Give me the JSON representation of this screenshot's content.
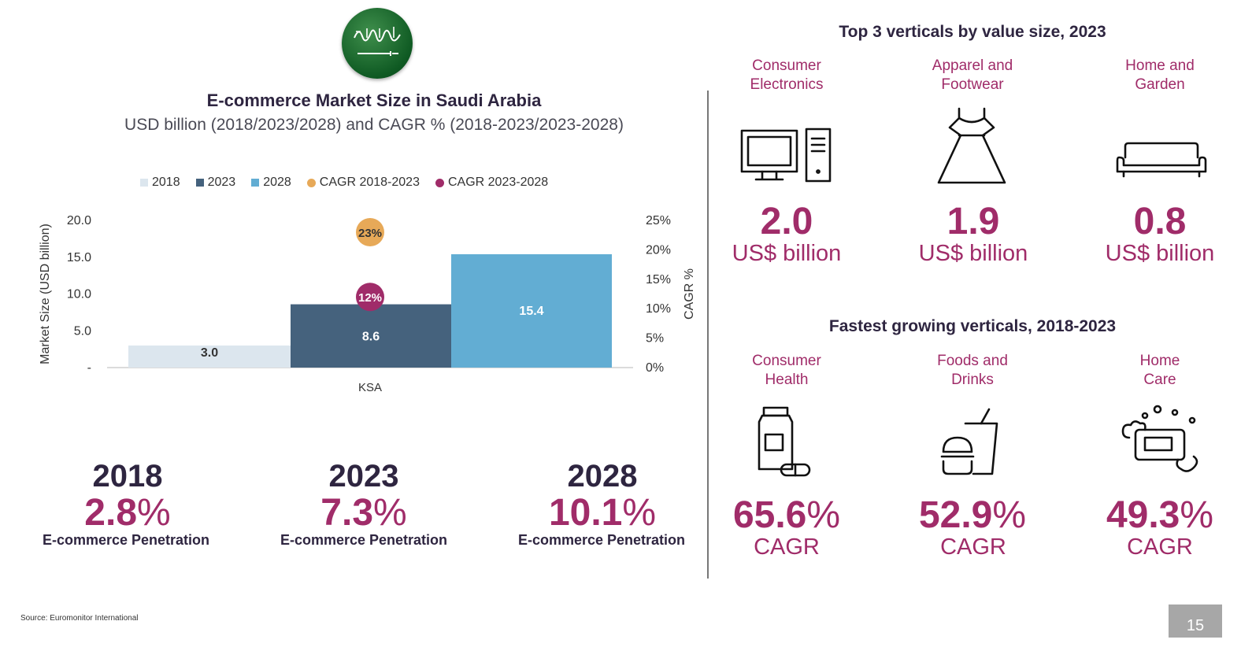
{
  "chart": {
    "title": "E-commerce Market Size in Saudi Arabia",
    "subtitle": "USD billion (2018/2023/2028) and CAGR % (2018-2023/2023-2028)",
    "legend": [
      {
        "label": "2018",
        "color": "#dce6ee",
        "shape": "square"
      },
      {
        "label": "2023",
        "color": "#45627d",
        "shape": "square"
      },
      {
        "label": "2028",
        "color": "#62add3",
        "shape": "square"
      },
      {
        "label": "CAGR 2018-2023",
        "color": "#e7a958",
        "shape": "circle"
      },
      {
        "label": "CAGR 2023-2028",
        "color": "#a02c69",
        "shape": "circle"
      }
    ]
  },
  "chart_data": {
    "type": "bar",
    "title": "E-commerce Market Size in Saudi Arabia",
    "subtitle": "USD billion (2018/2023/2028) and CAGR % (2018-2023/2023-2028)",
    "categories": [
      "KSA"
    ],
    "series": [
      {
        "name": "2018",
        "values": [
          3.0
        ],
        "color": "#dce6ee",
        "label": "3.0"
      },
      {
        "name": "2023",
        "values": [
          8.6
        ],
        "color": "#45627d",
        "label": "8.6"
      },
      {
        "name": "2028",
        "values": [
          15.4
        ],
        "color": "#62add3",
        "label": "15.4"
      }
    ],
    "cagr": [
      {
        "name": "CAGR 2018-2023",
        "value": 23,
        "label": "23%",
        "color": "#e7a958"
      },
      {
        "name": "CAGR 2023-2028",
        "value": 12,
        "label": "12%",
        "color": "#a02c69"
      }
    ],
    "ylabel": "Market Size (USD billion)",
    "y2label": "CAGR %",
    "ylim": [
      0,
      20
    ],
    "y2lim": [
      0,
      25
    ],
    "yticks": [
      "-",
      "5.0",
      "10.0",
      "15.0",
      "20.0"
    ],
    "y2ticks": [
      "0%",
      "5%",
      "10%",
      "15%",
      "20%",
      "25%"
    ],
    "xlabel": "KSA",
    "grid": false,
    "legend_position": "top"
  },
  "penetration": [
    {
      "year": "2018",
      "value": "2.8",
      "pct": "%",
      "label": "E-commerce Penetration"
    },
    {
      "year": "2023",
      "value": "7.3",
      "pct": "%",
      "label": "E-commerce Penetration"
    },
    {
      "year": "2028",
      "value": "10.1",
      "pct": "%",
      "label": "E-commerce Penetration"
    }
  ],
  "top_verticals": {
    "title": "Top 3 verticals by value size, 2023",
    "items": [
      {
        "name_line1": "Consumer",
        "name_line2": "Electronics",
        "value": "2.0",
        "unit": "US$ billion",
        "icon": "computer-icon"
      },
      {
        "name_line1": "Apparel and",
        "name_line2": "Footwear",
        "value": "1.9",
        "unit": "US$ billion",
        "icon": "dress-icon"
      },
      {
        "name_line1": "Home and",
        "name_line2": "Garden",
        "value": "0.8",
        "unit": "US$ billion",
        "icon": "sofa-icon"
      }
    ]
  },
  "fastest_verticals": {
    "title": "Fastest growing verticals, 2018-2023",
    "items": [
      {
        "name_line1": "Consumer",
        "name_line2": "Health",
        "value": "65.6",
        "pct": "%",
        "unit": "CAGR",
        "icon": "medicine-bottle-icon"
      },
      {
        "name_line1": "Foods and",
        "name_line2": "Drinks",
        "value": "52.9",
        "pct": "%",
        "unit": "CAGR",
        "icon": "burger-drink-icon"
      },
      {
        "name_line1": "Home",
        "name_line2": "Care",
        "value": "49.3",
        "pct": "%",
        "unit": "CAGR",
        "icon": "soap-icon"
      }
    ]
  },
  "footer": {
    "source": "Source: Euromonitor International",
    "page_number": "15"
  }
}
